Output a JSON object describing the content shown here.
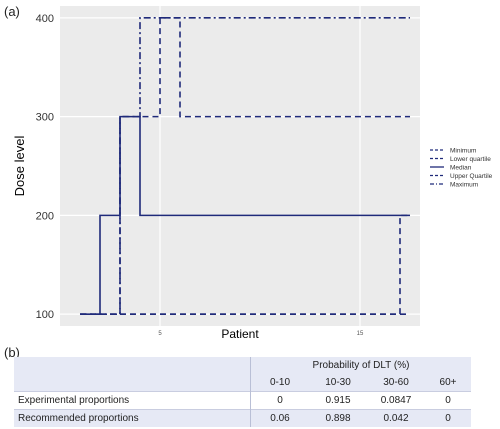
{
  "panel_a_label": "(a)",
  "panel_b_label": "(b)",
  "chart_data": {
    "type": "line",
    "step": true,
    "xlabel": "Patient",
    "ylabel": "Dose level",
    "xlim": [
      0,
      18
    ],
    "ylim": [
      88,
      412
    ],
    "xticks": [
      5,
      15
    ],
    "xtick_labels": [
      "5",
      "15"
    ],
    "yticks": [
      100,
      200,
      300,
      400
    ],
    "ytick_labels": [
      "100",
      "200",
      "300",
      "400"
    ],
    "grid": true,
    "legend_position": "right",
    "colors": {
      "line": "#1f2a7a",
      "panel": "#ebebeb",
      "grid": "#ffffff"
    },
    "series": [
      {
        "name": "Minimum",
        "dash": "dashed",
        "x": [
          1,
          3,
          3,
          17,
          17,
          17.5
        ],
        "y": [
          100,
          100,
          100,
          100,
          100,
          100
        ]
      },
      {
        "name": "Lower quartile",
        "dash": "dashed",
        "x": [
          1,
          3,
          3,
          17,
          17,
          17.5
        ],
        "y": [
          100,
          100,
          100,
          100,
          200,
          200
        ]
      },
      {
        "name": "Median",
        "dash": "solid",
        "x": [
          1,
          2,
          2,
          3,
          3,
          4,
          4,
          17.5
        ],
        "y": [
          100,
          100,
          200,
          200,
          300,
          300,
          200,
          200
        ]
      },
      {
        "name": "Upper Quartile",
        "dash": "dashed",
        "x": [
          3,
          3,
          4,
          4,
          5,
          5,
          6,
          6,
          17.5
        ],
        "y": [
          100,
          300,
          300,
          300,
          300,
          400,
          400,
          300,
          300
        ]
      },
      {
        "name": "Maximum",
        "dash": "dashdot",
        "x": [
          1,
          3,
          3,
          4,
          4,
          17.5
        ],
        "y": [
          100,
          100,
          300,
          300,
          400,
          400
        ]
      }
    ]
  },
  "table": {
    "group_header": "Probability of DLT (%)",
    "ranges": [
      "0-10",
      "10-30",
      "30-60",
      "60+"
    ],
    "rows": [
      {
        "label": "Experimental proportions",
        "values": [
          "0",
          "0.915",
          "0.0847",
          "0"
        ]
      },
      {
        "label": "Recommended proportions",
        "values": [
          "0.06",
          "0.898",
          "0.042",
          "0"
        ]
      }
    ]
  }
}
